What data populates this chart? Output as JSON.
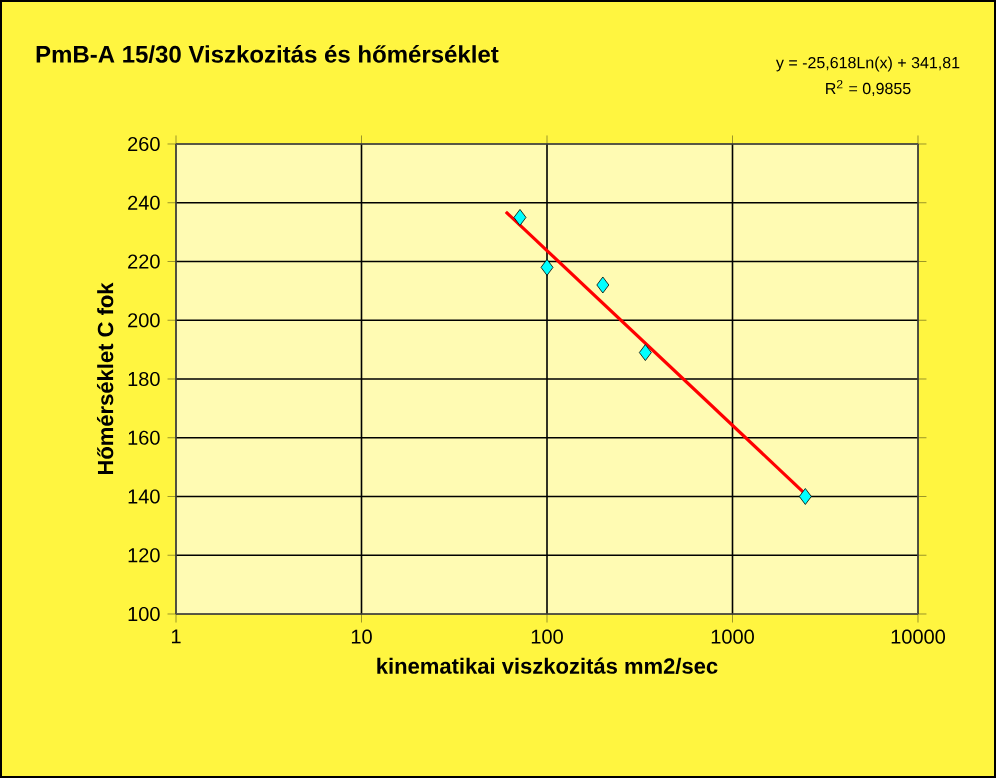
{
  "chart_data": {
    "type": "scatter",
    "title": "PmB-A 15/30 Viszkozitás és hőmérséklet",
    "xlabel": "kinematikai viszkozitás mm2/sec",
    "ylabel": "Hőmérséklet C fok",
    "annotations": [
      "y = -25,618Ln(x) + 341,81",
      "R$^{2}$ = 0,9855"
    ],
    "log": "x",
    "xlim": [
      1,
      10000
    ],
    "xticks": [
      1,
      10,
      100,
      1000,
      10000
    ],
    "ylim": [
      100,
      260
    ],
    "yticks": [
      100,
      120,
      140,
      160,
      180,
      200,
      220,
      240,
      260
    ],
    "grid": true,
    "series": [
      {
        "color": "#00ffff",
        "marker": "diamond",
        "x": [
          71.5,
          100,
          200,
          339,
          2470
        ],
        "values": [
          235,
          218,
          212,
          189,
          140
        ]
      },
      {
        "type": "line",
        "color": "#ff0000",
        "marker": "none",
        "line_style": "solid",
        "x": [
          60,
          2400
        ],
        "values": [
          236.9,
          141.6
        ]
      }
    ]
  }
}
